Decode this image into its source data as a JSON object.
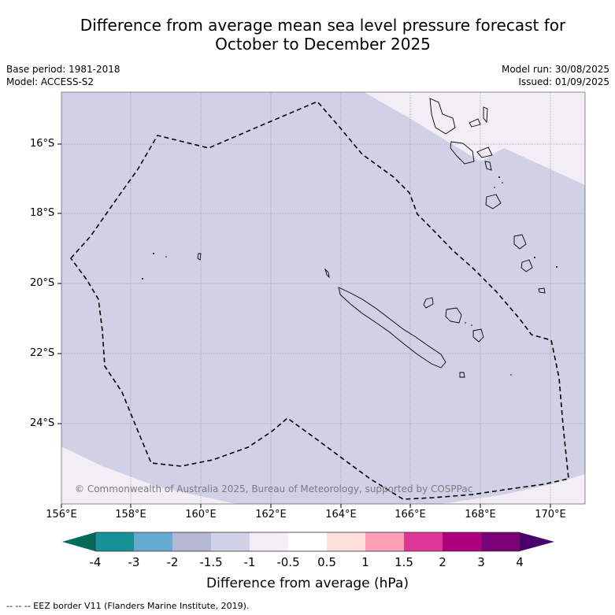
{
  "title_line1": "Difference from average mean sea level pressure forecast for",
  "title_line2": "October to December 2025",
  "meta_left": {
    "base_period": "Base period: 1981-2018",
    "model": "Model: ACCESS-S2"
  },
  "meta_right": {
    "model_run": "Model run: 30/08/2025",
    "issued": "Issued: 01/09/2025"
  },
  "map": {
    "lon_ticks": [
      "156°E",
      "158°E",
      "160°E",
      "162°E",
      "164°E",
      "166°E",
      "168°E",
      "170°E"
    ],
    "lat_ticks": [
      "16°S",
      "18°S",
      "20°S",
      "22°S",
      "24°S"
    ],
    "copyright": "© Commonwealth of Australia 2025, Bureau of Meteorology, supported by COSPPac",
    "fill_colors": {
      "neg_1_5_to_neg_1": "#d0d1e6",
      "neg_1_to_neg_0_5": "#f3eef6",
      "coast": "#000000",
      "grid": "#8a8a99"
    }
  },
  "colorbar": {
    "labels": [
      "-4",
      "-3",
      "-2",
      "-1.5",
      "-1",
      "-0.5",
      "0.5",
      "1",
      "1.5",
      "2",
      "3",
      "4"
    ],
    "colors": [
      "#1a9099",
      "#67a9cf",
      "#b3b9d3",
      "#d0d1e6",
      "#f3eef6",
      "#ffffff",
      "#fde0dd",
      "#fa9fb5",
      "#dd3497",
      "#ae017e",
      "#7a0177"
    ],
    "low_color": "#016c59",
    "high_color": "#49006a",
    "title": "Difference from average (hPa)"
  },
  "footer": "--  --  -- EEZ border V11 (Flanders Marine Institute, 2019)."
}
